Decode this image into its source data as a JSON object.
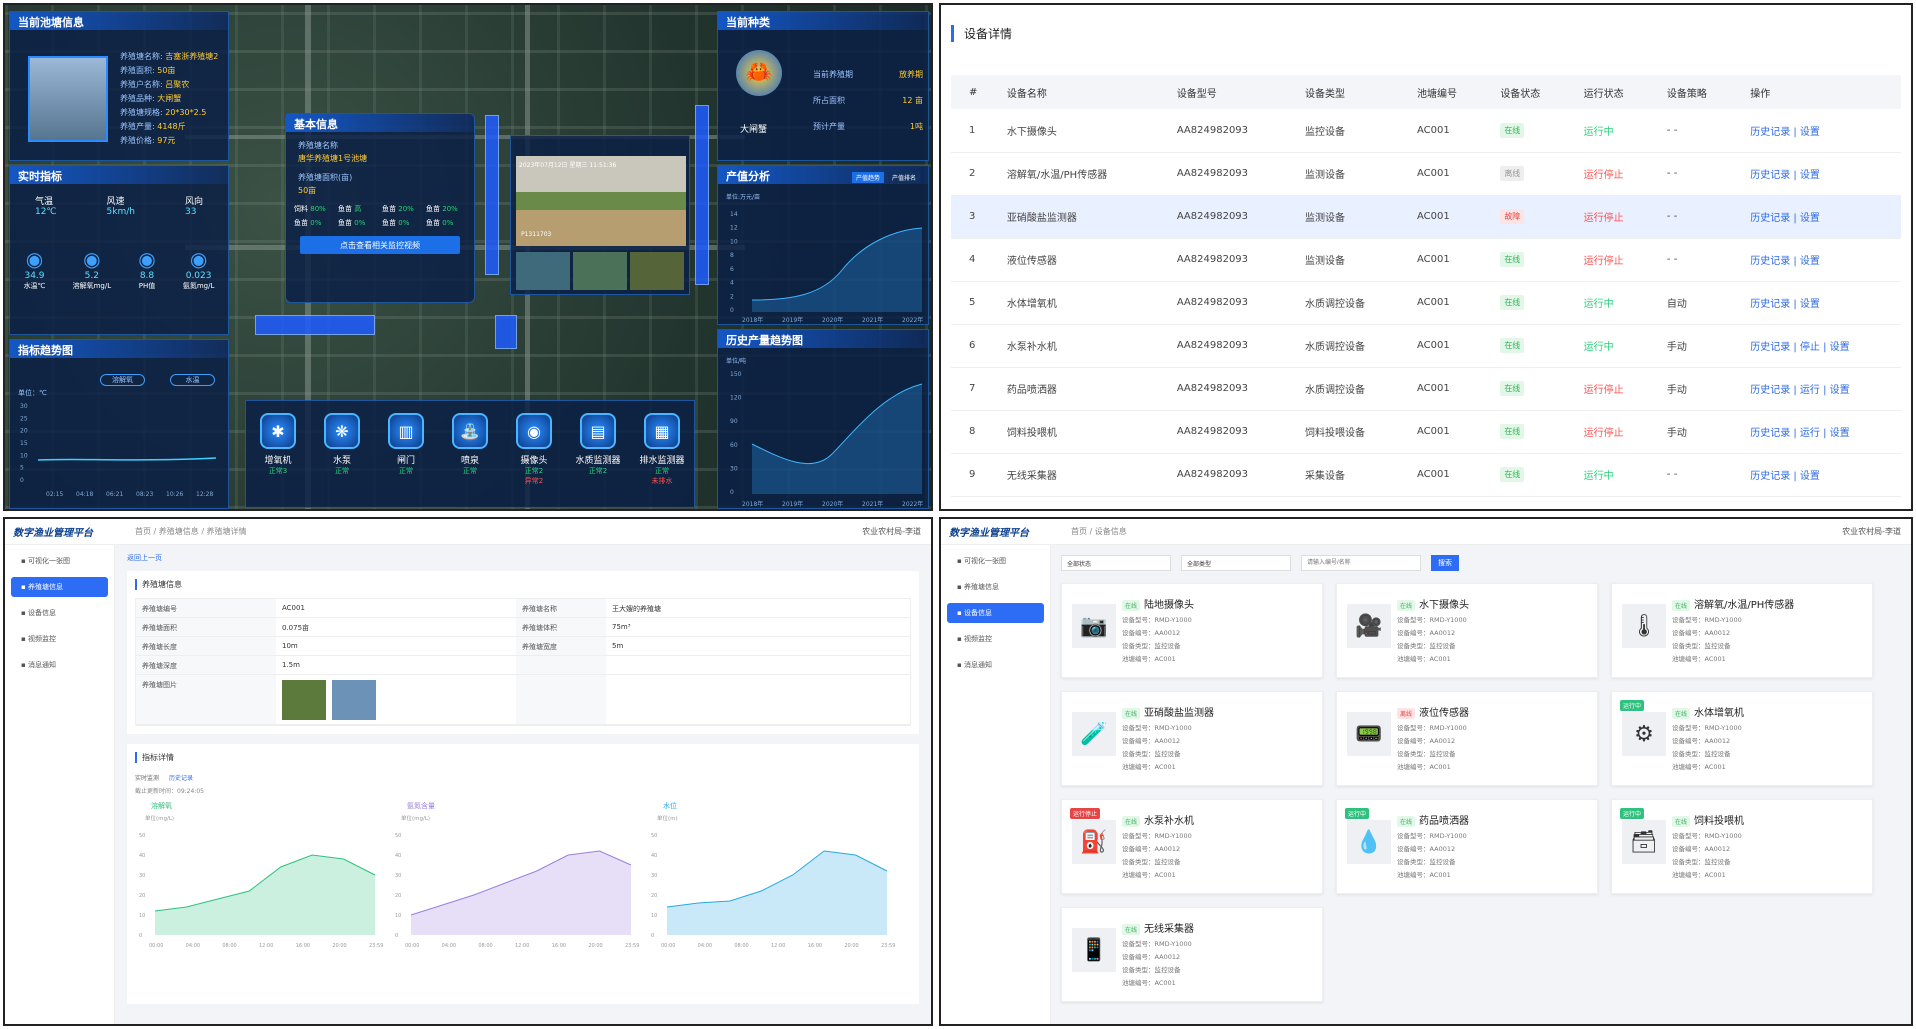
{
  "dash": {
    "pond_title": "当前池塘信息",
    "pond_info": [
      [
        "养殖塘名称:",
        "吉塞浙养殖塘2"
      ],
      [
        "养殖面积:",
        "50亩"
      ],
      [
        "养殖户名称:",
        "吕聚农"
      ],
      [
        "养殖品种:",
        "大闸蟹"
      ],
      [
        "养殖塘规格:",
        "20*30*2.5"
      ],
      [
        "养殖产量:",
        "4148斤"
      ],
      [
        "养殖价格:",
        "97元"
      ]
    ],
    "realtime_title": "实时指标",
    "weather": [
      [
        "气温",
        "12℃"
      ],
      [
        "风速",
        "5km/h"
      ],
      [
        "风向",
        "33"
      ]
    ],
    "metrics": [
      [
        "34.9",
        "水温℃"
      ],
      [
        "5.2",
        "溶解氧mg/L"
      ],
      [
        "8.8",
        "PH值"
      ],
      [
        "0.023",
        "氨氮mg/L"
      ]
    ],
    "trend_title": "指标趋势图",
    "trend_select1": "溶解氧",
    "trend_select2": "水温",
    "trend_unit": "单位：℃",
    "trend_y": [
      "30",
      "25",
      "20",
      "15",
      "10",
      "5",
      "0"
    ],
    "trend_x": [
      "02:15",
      "04:18",
      "06:21",
      "08:23",
      "10:26",
      "12:28"
    ],
    "basic_title": "基本信息",
    "basic_name_label": "养殖塘名称",
    "basic_name": "唐华养殖塘1号池塘",
    "basic_area_label": "养殖塘面积(亩)",
    "basic_area": "50亩",
    "basic_stats": [
      [
        "饲料",
        "80%"
      ],
      [
        "鱼苗",
        "高"
      ],
      [
        "鱼苗",
        "20%"
      ],
      [
        "鱼苗",
        "20%"
      ],
      [
        "鱼苗",
        "0%"
      ],
      [
        "鱼苗",
        "0%"
      ],
      [
        "鱼苗",
        "0%"
      ],
      [
        "鱼苗",
        "0%"
      ]
    ],
    "basic_btn": "点击查看相关监控视频",
    "video_time": "2023年07月12日 星期三 11:51:36",
    "video_cam": "P1311703",
    "species_title": "当前种类",
    "species_name": "大闸蟹",
    "species_items": [
      [
        "当前养殖期",
        "放养期"
      ],
      [
        "所占面积",
        "12 亩"
      ],
      [
        "预计产量",
        "1吨"
      ]
    ],
    "output_title": "产值分析",
    "output_tabs": [
      "产值趋势",
      "产值排名"
    ],
    "output_unit": "单位:万元/亩",
    "output_y": [
      "14",
      "12",
      "10",
      "8",
      "6",
      "4",
      "2",
      "0"
    ],
    "output_x": [
      "2018年",
      "2019年",
      "2020年",
      "2021年",
      "2022年"
    ],
    "history_title": "历史产量趋势图",
    "history_unit": "单位/吨",
    "history_y": [
      "150",
      "120",
      "90",
      "60",
      "30",
      "0"
    ],
    "history_x": [
      "2018年",
      "2019年",
      "2020年",
      "2021年",
      "2022年"
    ],
    "devices": [
      [
        "增氧机",
        "正常3"
      ],
      [
        "水泵",
        "正常"
      ],
      [
        "闸门",
        "正常"
      ],
      [
        "喷泉",
        "正常"
      ],
      [
        "摄像头",
        "正常2",
        "异常2"
      ],
      [
        "水质监测器",
        "正常2"
      ],
      [
        "排水监测器",
        "正常",
        "未排水"
      ]
    ]
  },
  "detail": {
    "title": "设备详情",
    "cols": [
      "#",
      "设备名称",
      "设备型号",
      "设备类型",
      "池塘编号",
      "设备状态",
      "运行状态",
      "设备策略",
      "操作"
    ],
    "rows": [
      [
        "1",
        "水下摄像头",
        "AA824982093",
        "监控设备",
        "AC001",
        "在线",
        "运行中",
        "- -",
        "历史记录 | 设置"
      ],
      [
        "2",
        "溶解氧/水温/PH传感器",
        "AA824982093",
        "监测设备",
        "AC001",
        "离线",
        "运行停止",
        "- -",
        "历史记录 | 设置"
      ],
      [
        "3",
        "亚硝酸盐监测器",
        "AA824982093",
        "监测设备",
        "AC001",
        "故障",
        "运行停止",
        "- -",
        "历史记录 | 设置"
      ],
      [
        "4",
        "液位传感器",
        "AA824982093",
        "监测设备",
        "AC001",
        "在线",
        "运行停止",
        "- -",
        "历史记录 | 设置"
      ],
      [
        "5",
        "水体增氧机",
        "AA824982093",
        "水质调控设备",
        "AC001",
        "在线",
        "运行中",
        "自动",
        "历史记录 | 设置"
      ],
      [
        "6",
        "水泵补水机",
        "AA824982093",
        "水质调控设备",
        "AC001",
        "在线",
        "运行中",
        "手动",
        "历史记录 | 停止 | 设置"
      ],
      [
        "7",
        "药品喷洒器",
        "AA824982093",
        "水质调控设备",
        "AC001",
        "在线",
        "运行停止",
        "手动",
        "历史记录 | 运行 | 设置"
      ],
      [
        "8",
        "饲料投喂机",
        "AA824982093",
        "饲料投喂设备",
        "AC001",
        "在线",
        "运行停止",
        "手动",
        "历史记录 | 运行 | 设置"
      ],
      [
        "9",
        "无线采集器",
        "AA824982093",
        "采集设备",
        "AC001",
        "在线",
        "运行中",
        "- -",
        "历史记录 | 设置"
      ]
    ]
  },
  "admin": {
    "brand": "数字渔业管理平台",
    "user": "农业农村局-李道",
    "menu": [
      "可视化一张图",
      "养殖塘信息",
      "设备信息",
      "视频监控",
      "消息通知"
    ],
    "crumb_pond": "首页 / 养殖塘信息 / 养殖塘详情",
    "crumb_dev": "首页 / 设备信息",
    "back": "返回上一页",
    "pond_section": "养殖塘信息",
    "pond_fields": [
      [
        "养殖塘编号",
        "AC001",
        "养殖塘名称",
        "王大嫂的养殖塘"
      ],
      [
        "养殖塘面积",
        "0.075亩",
        "养殖塘体积",
        "75m³"
      ],
      [
        "养殖塘长度",
        "10m",
        "养殖塘宽度",
        "5m"
      ],
      [
        "养殖塘深度",
        "1.5m",
        "",
        ""
      ],
      [
        "养殖塘图片",
        "",
        "",
        ""
      ]
    ],
    "indicator_section": "指标详情",
    "ind_tabs": [
      "实时监测",
      "历史记录"
    ],
    "updated": "截止更新时间：09:24:05",
    "charts": [
      {
        "name": "溶解氧",
        "unit": "单位(mg/L)",
        "color": "#2ec27e"
      },
      {
        "name": "氨氮含量",
        "unit": "单位(mg/L)",
        "color": "#9a7fe0"
      },
      {
        "name": "水位",
        "unit": "单位(m)",
        "color": "#27a8e6"
      }
    ],
    "chart_y": [
      "50",
      "40",
      "30",
      "20",
      "10",
      "0"
    ],
    "chart_x": [
      "00:00",
      "04:00",
      "08:00",
      "12:00",
      "16:00",
      "20:00",
      "23:59"
    ],
    "filter1": "全部状态",
    "filter2": "全部类型",
    "search_ph": "请输入编号/名称",
    "search_btn": "搜索",
    "cards": [
      {
        "name": "陆地摄像头",
        "status": "在线",
        "icon": "📷"
      },
      {
        "name": "水下摄像头",
        "status": "在线",
        "icon": "🎥"
      },
      {
        "name": "溶解氧/水温/PH传感器",
        "status": "在线",
        "icon": "🌡"
      },
      {
        "name": "亚硝酸盐监测器",
        "status": "在线",
        "icon": "🧪"
      },
      {
        "name": "液位传感器",
        "status": "离线",
        "icon": "📟"
      },
      {
        "name": "水体增氧机",
        "status": "在线",
        "icon": "⚙",
        "ribbon": "运行中"
      },
      {
        "name": "水泵补水机",
        "status": "在线",
        "icon": "⛽",
        "ribbon": "运行停止"
      },
      {
        "name": "药品喷洒器",
        "status": "在线",
        "icon": "💧",
        "ribbon": "运行中"
      },
      {
        "name": "饲料投喂机",
        "status": "在线",
        "icon": "🗃",
        "ribbon": "运行中"
      },
      {
        "name": "无线采集器",
        "status": "在线",
        "icon": "📱"
      }
    ],
    "card_meta": [
      "设备型号：RMD-Y1000",
      "设备编号：AA0012",
      "设备类型：监控设备",
      "池塘编号：AC001"
    ]
  }
}
